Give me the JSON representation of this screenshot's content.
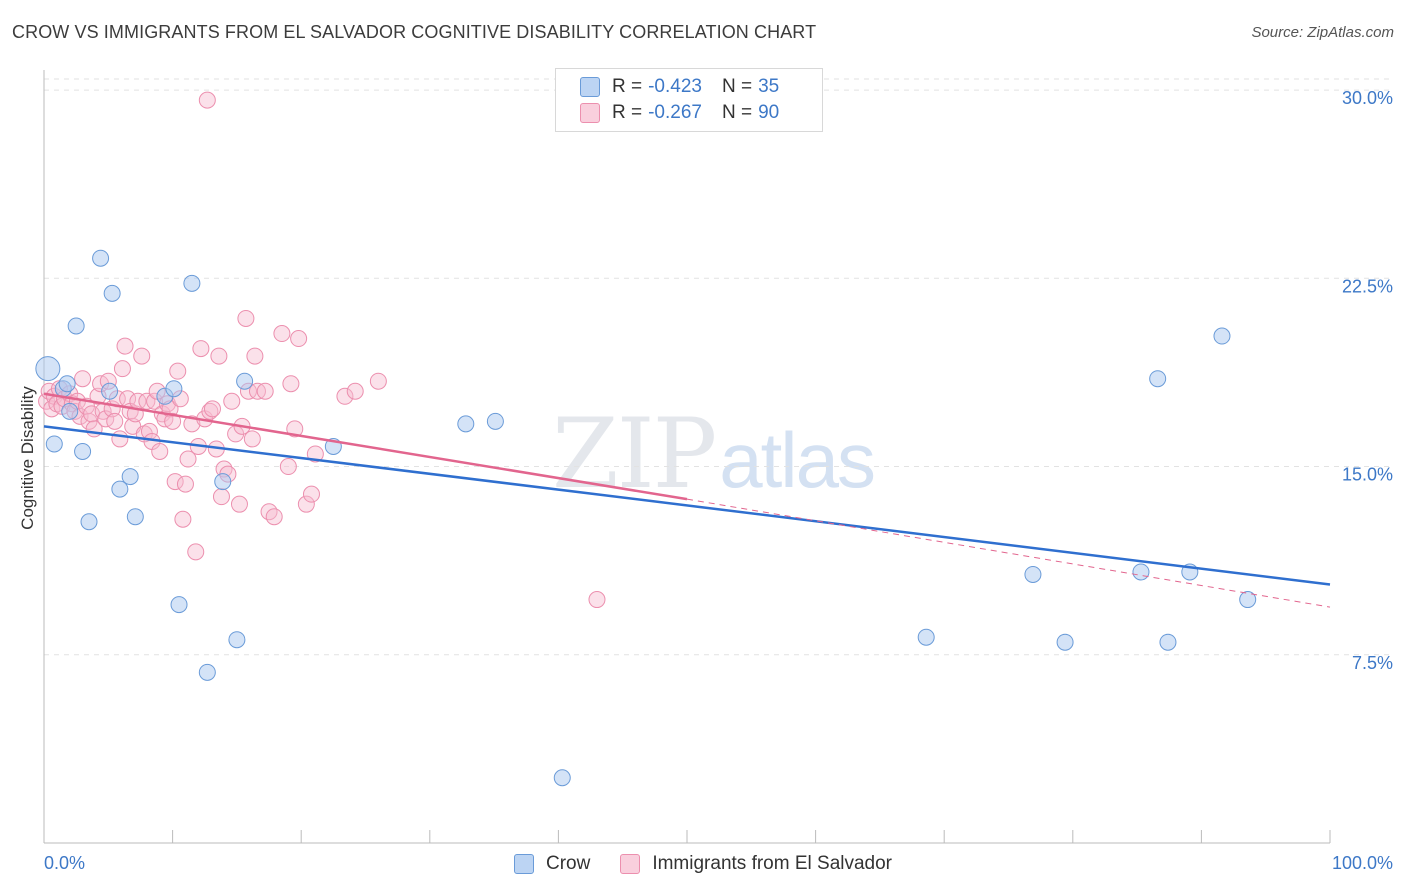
{
  "title": "CROW VS IMMIGRANTS FROM EL SALVADOR COGNITIVE DISABILITY CORRELATION CHART",
  "source": "Source: ZipAtlas.com",
  "watermark": {
    "zip": "ZIP",
    "atlas": "atlas"
  },
  "legend_top": [
    {
      "r_label": "R =",
      "r_value": "-0.423",
      "n_label": "N =",
      "n_value": "35"
    },
    {
      "r_label": "R =",
      "r_value": "-0.267",
      "n_label": "N =",
      "n_value": "90"
    }
  ],
  "colors": {
    "crow_fill": "#a9c8ef",
    "crow_stroke": "#6a9bd8",
    "crow_line": "#2f6fcf",
    "salv_fill": "#f6bcd0",
    "salv_stroke": "#ec8fae",
    "salv_line": "#e2658e",
    "tick_label": "#3d78c7",
    "grid": "#e2e2e2"
  },
  "chart_data": {
    "type": "scatter",
    "title": "CROW VS IMMIGRANTS FROM EL SALVADOR COGNITIVE DISABILITY CORRELATION CHART",
    "xlabel": "",
    "ylabel": "Cognitive Disability",
    "xlim": [
      0,
      100
    ],
    "ylim": [
      0,
      30.8
    ],
    "x_tick_labels": [
      "0.0%",
      "100.0%"
    ],
    "y_ticks": [
      7.5,
      15.0,
      22.5,
      30.0
    ],
    "y_tick_labels": [
      "7.5%",
      "15.0%",
      "22.5%",
      "30.0%"
    ],
    "grid": true,
    "legend_position": "bottom",
    "series": [
      {
        "name": "Crow",
        "color": "#a9c8ef",
        "r": -0.423,
        "n": 35,
        "trend": {
          "x": [
            0,
            100
          ],
          "y": [
            16.6,
            10.3
          ]
        },
        "points": [
          [
            0.3,
            18.9
          ],
          [
            0.8,
            15.9
          ],
          [
            1.5,
            18.1
          ],
          [
            1.8,
            18.3
          ],
          [
            2.0,
            17.2
          ],
          [
            2.5,
            20.6
          ],
          [
            3.0,
            15.6
          ],
          [
            3.5,
            12.8
          ],
          [
            4.4,
            23.3
          ],
          [
            5.3,
            21.9
          ],
          [
            5.1,
            18.0
          ],
          [
            5.9,
            14.1
          ],
          [
            6.7,
            14.6
          ],
          [
            7.1,
            13.0
          ],
          [
            9.4,
            17.8
          ],
          [
            10.1,
            18.1
          ],
          [
            10.5,
            9.5
          ],
          [
            11.5,
            22.3
          ],
          [
            12.7,
            6.8
          ],
          [
            13.9,
            14.4
          ],
          [
            15.0,
            8.1
          ],
          [
            15.6,
            18.4
          ],
          [
            22.5,
            15.8
          ],
          [
            32.8,
            16.7
          ],
          [
            35.1,
            16.8
          ],
          [
            40.3,
            2.6
          ],
          [
            68.6,
            8.2
          ],
          [
            76.9,
            10.7
          ],
          [
            79.4,
            8.0
          ],
          [
            85.3,
            10.8
          ],
          [
            86.6,
            18.5
          ],
          [
            87.4,
            8.0
          ],
          [
            89.1,
            10.8
          ],
          [
            91.6,
            20.2
          ],
          [
            93.6,
            9.7
          ]
        ]
      },
      {
        "name": "Immigrants from El Salvador",
        "color": "#f6bcd0",
        "r": -0.267,
        "n": 90,
        "trend_solid": {
          "x": [
            0,
            50
          ],
          "y": [
            17.9,
            13.7
          ]
        },
        "trend_dashed": {
          "x": [
            50,
            100
          ],
          "y": [
            13.7,
            9.4
          ]
        },
        "points": [
          [
            0.2,
            17.6
          ],
          [
            0.4,
            18.0
          ],
          [
            0.6,
            17.3
          ],
          [
            0.8,
            17.8
          ],
          [
            1.0,
            17.5
          ],
          [
            1.2,
            18.1
          ],
          [
            1.4,
            17.4
          ],
          [
            1.6,
            17.7
          ],
          [
            2.0,
            17.9
          ],
          [
            2.2,
            17.5
          ],
          [
            2.4,
            17.2
          ],
          [
            2.6,
            17.6
          ],
          [
            2.8,
            17.0
          ],
          [
            3.0,
            18.5
          ],
          [
            3.3,
            17.4
          ],
          [
            3.5,
            16.8
          ],
          [
            3.7,
            17.1
          ],
          [
            3.9,
            16.5
          ],
          [
            4.2,
            17.8
          ],
          [
            4.4,
            18.3
          ],
          [
            4.6,
            17.2
          ],
          [
            4.8,
            16.9
          ],
          [
            5.0,
            18.4
          ],
          [
            5.3,
            17.3
          ],
          [
            5.5,
            16.8
          ],
          [
            5.7,
            17.7
          ],
          [
            5.9,
            16.1
          ],
          [
            6.1,
            18.9
          ],
          [
            6.3,
            19.8
          ],
          [
            6.5,
            17.7
          ],
          [
            6.7,
            17.2
          ],
          [
            6.9,
            16.6
          ],
          [
            7.1,
            17.1
          ],
          [
            7.3,
            17.6
          ],
          [
            7.6,
            19.4
          ],
          [
            7.8,
            16.3
          ],
          [
            8.0,
            17.6
          ],
          [
            8.2,
            16.4
          ],
          [
            8.4,
            16.0
          ],
          [
            8.6,
            17.6
          ],
          [
            8.8,
            18.0
          ],
          [
            9.0,
            15.6
          ],
          [
            9.2,
            17.1
          ],
          [
            9.4,
            16.9
          ],
          [
            9.6,
            17.5
          ],
          [
            9.8,
            17.3
          ],
          [
            10.0,
            16.8
          ],
          [
            10.2,
            14.4
          ],
          [
            10.4,
            18.8
          ],
          [
            10.6,
            17.7
          ],
          [
            10.8,
            12.9
          ],
          [
            11.0,
            14.3
          ],
          [
            11.2,
            15.3
          ],
          [
            11.5,
            16.7
          ],
          [
            11.8,
            11.6
          ],
          [
            12.0,
            15.8
          ],
          [
            12.2,
            19.7
          ],
          [
            12.5,
            16.9
          ],
          [
            12.7,
            29.6
          ],
          [
            12.9,
            17.2
          ],
          [
            13.1,
            17.3
          ],
          [
            13.4,
            15.7
          ],
          [
            13.6,
            19.4
          ],
          [
            13.8,
            13.8
          ],
          [
            14.0,
            14.9
          ],
          [
            14.3,
            14.7
          ],
          [
            14.6,
            17.6
          ],
          [
            14.9,
            16.3
          ],
          [
            15.2,
            13.5
          ],
          [
            15.4,
            16.6
          ],
          [
            15.7,
            20.9
          ],
          [
            15.9,
            18.0
          ],
          [
            16.2,
            16.1
          ],
          [
            16.4,
            19.4
          ],
          [
            16.6,
            18.0
          ],
          [
            17.2,
            18.0
          ],
          [
            17.5,
            13.2
          ],
          [
            17.9,
            13.0
          ],
          [
            18.5,
            20.3
          ],
          [
            19.0,
            15.0
          ],
          [
            19.2,
            18.3
          ],
          [
            19.5,
            16.5
          ],
          [
            19.8,
            20.1
          ],
          [
            20.4,
            13.5
          ],
          [
            20.8,
            13.9
          ],
          [
            21.1,
            15.5
          ],
          [
            23.4,
            17.8
          ],
          [
            24.2,
            18.0
          ],
          [
            26.0,
            18.4
          ],
          [
            43.0,
            9.7
          ]
        ]
      }
    ]
  }
}
